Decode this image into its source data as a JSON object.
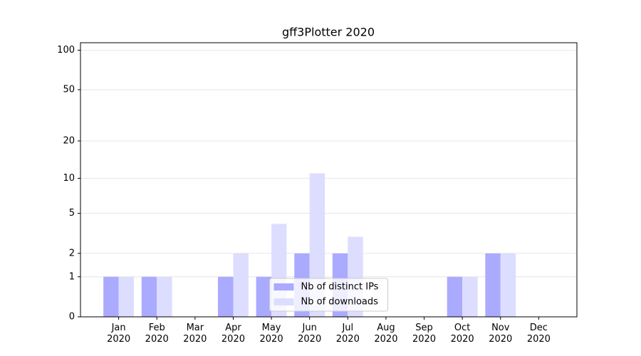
{
  "chart_data": {
    "type": "bar",
    "title": "gff3Plotter 2020",
    "categories": [
      "Jan 2020",
      "Feb 2020",
      "Mar 2020",
      "Apr 2020",
      "May 2020",
      "Jun 2020",
      "Jul 2020",
      "Aug 2020",
      "Sep 2020",
      "Oct 2020",
      "Nov 2020",
      "Dec 2020"
    ],
    "series": [
      {
        "name": "Nb of distinct IPs",
        "color": "#aaaaff",
        "values": [
          1,
          1,
          0,
          1,
          1,
          2,
          2,
          0,
          0,
          1,
          2,
          0
        ]
      },
      {
        "name": "Nb of downloads",
        "color": "#ddddff",
        "values": [
          1,
          1,
          0,
          2,
          4,
          11,
          3,
          0,
          0,
          1,
          2,
          0
        ]
      }
    ],
    "yscale": "log1p",
    "ylim": [
      0,
      114
    ],
    "yticks": [
      0,
      1,
      2,
      5,
      10,
      20,
      50,
      100
    ],
    "grid": true,
    "legend": "lower center"
  }
}
